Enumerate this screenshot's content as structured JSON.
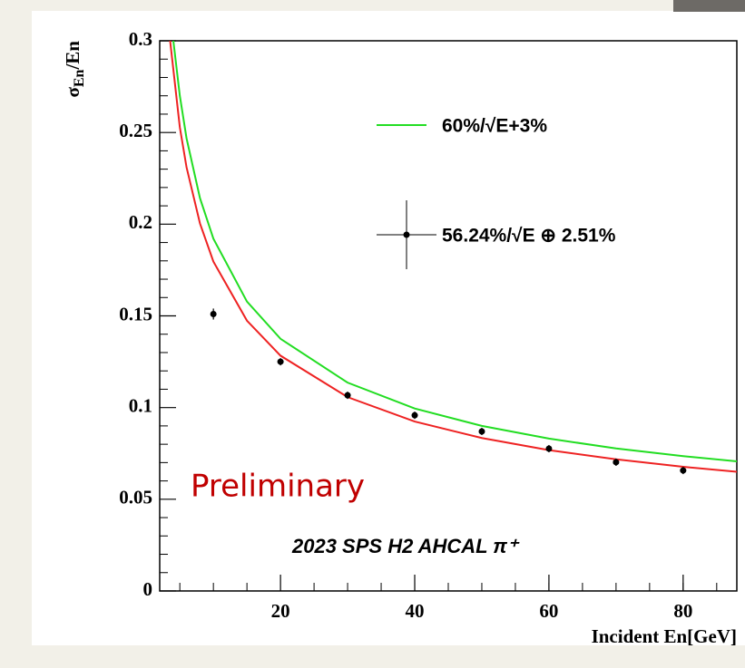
{
  "chart_data": {
    "type": "line",
    "ylabel": {
      "symbol": "σ",
      "subscript": "En",
      "rest": "/En"
    },
    "xlabel": "Incident En[GeV]",
    "annotations": [
      "Preliminary",
      "2023 SPS H2 AHCAL π⁺"
    ],
    "xlim": [
      2,
      88
    ],
    "xticks": [
      20,
      40,
      60,
      80
    ],
    "ylim": [
      0,
      0.3
    ],
    "yticks": [
      0,
      0.05,
      0.1,
      0.15,
      0.2,
      0.25,
      0.3
    ],
    "grid": false,
    "legend": "upper right",
    "series": [
      {
        "name": "60%/√E+3%",
        "color": "#22dd22",
        "style": "line",
        "x": [
          4,
          5,
          6,
          8,
          10,
          15,
          20,
          30,
          40,
          50,
          60,
          70,
          80,
          88
        ],
        "values": [
          0.301,
          0.27,
          0.2468,
          0.2142,
          0.1921,
          0.1578,
          0.1375,
          0.1136,
          0.0995,
          0.09,
          0.0831,
          0.0777,
          0.0735,
          0.0707
        ]
      },
      {
        "color": "#ee2222",
        "style": "line",
        "x": [
          3.5,
          5,
          6,
          8,
          10,
          15,
          20,
          30,
          40,
          50,
          60,
          70,
          80,
          88
        ],
        "values": [
          0.3017,
          0.2528,
          0.231,
          0.2004,
          0.1796,
          0.1474,
          0.1283,
          0.1057,
          0.0924,
          0.0834,
          0.0768,
          0.0718,
          0.0677,
          0.065
        ]
      },
      {
        "name": "56.24%/√E ⊕ 2.51%",
        "color": "#000000",
        "style": "points",
        "x": [
          10,
          20,
          30,
          40,
          50,
          60,
          70,
          80
        ],
        "values": [
          0.151,
          0.125,
          0.1067,
          0.0958,
          0.087,
          0.0776,
          0.0702,
          0.0657
        ],
        "errors": [
          0.003,
          0.002,
          0.002,
          0.002,
          0.002,
          0.002,
          0.002,
          0.002
        ]
      }
    ]
  }
}
